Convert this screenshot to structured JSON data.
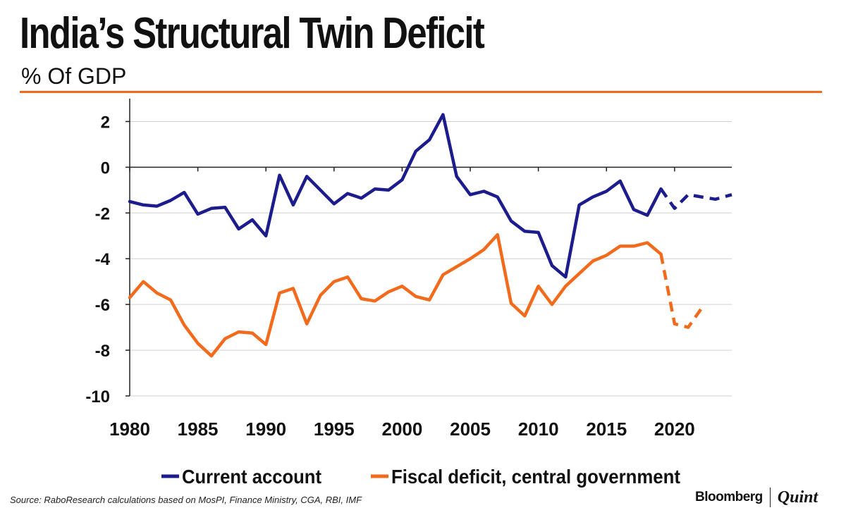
{
  "header": {
    "title": "India’s Structural Twin Deficit",
    "subtitle": "% Of GDP"
  },
  "footer": {
    "source": "Source: RaboResearch calculations based on MosPI, Finance Ministry, CGA, RBI, IMF",
    "brand": "Bloomberg",
    "brand2": "Quint"
  },
  "colors": {
    "current_account": "#1c1c8c",
    "fiscal_deficit": "#f26a1b",
    "rule": "#f26a1b"
  },
  "chart_data": {
    "type": "line",
    "title": "India’s Structural Twin Deficit",
    "subtitle": "% Of GDP",
    "xlabel": "",
    "ylabel": "",
    "xlim": [
      1980,
      2024.2
    ],
    "ylim": [
      -10,
      3
    ],
    "x_ticks": [
      1980,
      1985,
      1990,
      1995,
      2000,
      2005,
      2010,
      2015,
      2020
    ],
    "y_ticks": [
      2,
      0,
      -2,
      -4,
      -6,
      -8,
      -10
    ],
    "grid": "horizontal",
    "legend_position": "bottom",
    "series": [
      {
        "name": "Current account",
        "color": "#1c1c8c",
        "actual": {
          "x": [
            1980,
            1981,
            1982,
            1983,
            1984,
            1985,
            1986,
            1987,
            1988,
            1989,
            1990,
            1991,
            1992,
            1993,
            1994,
            1995,
            1996,
            1997,
            1998,
            1999,
            2000,
            2001,
            2002,
            2003,
            2004,
            2005,
            2006,
            2007,
            2008,
            2009,
            2010,
            2011,
            2012,
            2013,
            2014,
            2015,
            2016,
            2017,
            2018,
            2019
          ],
          "values": [
            -1.5,
            -1.65,
            -1.7,
            -1.45,
            -1.1,
            -2.05,
            -1.8,
            -1.75,
            -2.7,
            -2.3,
            -3.0,
            -0.35,
            -1.65,
            -0.4,
            -1.0,
            -1.6,
            -1.15,
            -1.35,
            -0.95,
            -1.0,
            -0.55,
            0.7,
            1.2,
            2.3,
            -0.4,
            -1.2,
            -1.05,
            -1.3,
            -2.35,
            -2.8,
            -2.85,
            -4.3,
            -4.8,
            -1.65,
            -1.3,
            -1.05,
            -0.6,
            -1.85,
            -2.1,
            -0.95
          ]
        },
        "forecast": {
          "x": [
            2019,
            2020,
            2021,
            2022,
            2023,
            2024.2
          ],
          "values": [
            -0.95,
            -1.8,
            -1.2,
            -1.3,
            -1.4,
            -1.2
          ]
        }
      },
      {
        "name": "Fiscal deficit, central government",
        "color": "#f26a1b",
        "actual": {
          "x": [
            1980,
            1981,
            1982,
            1983,
            1984,
            1985,
            1986,
            1987,
            1988,
            1989,
            1990,
            1991,
            1992,
            1993,
            1994,
            1995,
            1996,
            1997,
            1998,
            1999,
            2000,
            2001,
            2002,
            2003,
            2004,
            2005,
            2006,
            2007,
            2008,
            2009,
            2010,
            2011,
            2012,
            2013,
            2014,
            2015,
            2016,
            2017,
            2018,
            2019
          ],
          "values": [
            -5.7,
            -5.0,
            -5.5,
            -5.8,
            -6.9,
            -7.7,
            -8.25,
            -7.5,
            -7.2,
            -7.25,
            -7.75,
            -5.5,
            -5.3,
            -6.85,
            -5.6,
            -5.0,
            -4.8,
            -5.75,
            -5.85,
            -5.45,
            -5.2,
            -5.65,
            -5.8,
            -4.7,
            -4.35,
            -4.0,
            -3.6,
            -2.95,
            -5.95,
            -6.5,
            -5.2,
            -6.0,
            -5.2,
            -4.65,
            -4.1,
            -3.85,
            -3.45,
            -3.45,
            -3.3,
            -3.8
          ]
        },
        "forecast": {
          "x": [
            2019,
            2020,
            2021,
            2022
          ],
          "values": [
            -3.8,
            -6.85,
            -7.0,
            -6.15
          ]
        }
      }
    ]
  }
}
